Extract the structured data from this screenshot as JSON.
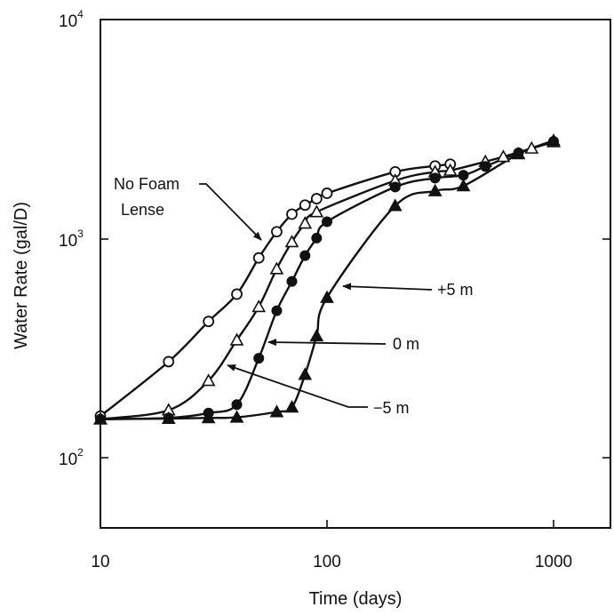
{
  "chart_data": {
    "type": "line",
    "xlabel": "Time (days)",
    "ylabel": "Water Rate (gal/D)",
    "xscale": "log",
    "yscale": "log",
    "xlim": [
      10,
      1400
    ],
    "ylim": [
      40,
      10000
    ],
    "x_ticks": [
      {
        "value": 10,
        "label": "10"
      },
      {
        "value": 100,
        "label": "100"
      },
      {
        "value": 1000,
        "label": "1000"
      }
    ],
    "y_ticks": [
      {
        "value": 100,
        "base": "10",
        "exp": "2"
      },
      {
        "value": 1000,
        "base": "10",
        "exp": "3"
      },
      {
        "value": 10000,
        "base": "10",
        "exp": "4"
      }
    ],
    "grid": false,
    "series": [
      {
        "name": "No Foam Lense",
        "marker": "circle-open",
        "points": [
          [
            10,
            155
          ],
          [
            20,
            275
          ],
          [
            30,
            420
          ],
          [
            40,
            560
          ],
          [
            50,
            820
          ],
          [
            60,
            1080
          ],
          [
            70,
            1300
          ],
          [
            80,
            1430
          ],
          [
            90,
            1530
          ],
          [
            100,
            1620
          ],
          [
            200,
            2030
          ],
          [
            300,
            2160
          ],
          [
            350,
            2200
          ]
        ]
      },
      {
        "name": "-5 m",
        "marker": "triangle-open",
        "points": [
          [
            10,
            150
          ],
          [
            20,
            165
          ],
          [
            30,
            225
          ],
          [
            40,
            345
          ],
          [
            50,
            490
          ],
          [
            60,
            730
          ],
          [
            70,
            970
          ],
          [
            80,
            1180
          ],
          [
            90,
            1330
          ],
          [
            200,
            1850
          ],
          [
            300,
            2030
          ],
          [
            350,
            2060
          ],
          [
            500,
            2260
          ],
          [
            600,
            2380
          ],
          [
            800,
            2600
          ],
          [
            1000,
            2780
          ]
        ]
      },
      {
        "name": "0 m",
        "marker": "circle-filled",
        "points": [
          [
            10,
            150
          ],
          [
            20,
            152
          ],
          [
            30,
            160
          ],
          [
            40,
            175
          ],
          [
            50,
            285
          ],
          [
            60,
            470
          ],
          [
            70,
            640
          ],
          [
            80,
            840
          ],
          [
            90,
            1010
          ],
          [
            100,
            1200
          ],
          [
            200,
            1730
          ],
          [
            300,
            1900
          ],
          [
            400,
            1960
          ],
          [
            500,
            2150
          ],
          [
            700,
            2480
          ],
          [
            1000,
            2800
          ]
        ]
      },
      {
        "name": "+5 m",
        "marker": "triangle-filled",
        "points": [
          [
            10,
            150
          ],
          [
            20,
            151
          ],
          [
            30,
            152
          ],
          [
            40,
            153
          ],
          [
            60,
            162
          ],
          [
            70,
            170
          ],
          [
            80,
            240
          ],
          [
            90,
            360
          ],
          [
            100,
            540
          ],
          [
            200,
            1420
          ],
          [
            300,
            1660
          ],
          [
            400,
            1750
          ],
          [
            700,
            2450
          ],
          [
            1000,
            2820
          ]
        ]
      }
    ],
    "annotations": [
      {
        "id": "no-foam",
        "lines": [
          "No Foam",
          "Lense"
        ]
      },
      {
        "id": "plus5",
        "text": "+5 m"
      },
      {
        "id": "zero",
        "text": "0 m"
      },
      {
        "id": "minus5",
        "text": "−5 m"
      }
    ]
  }
}
